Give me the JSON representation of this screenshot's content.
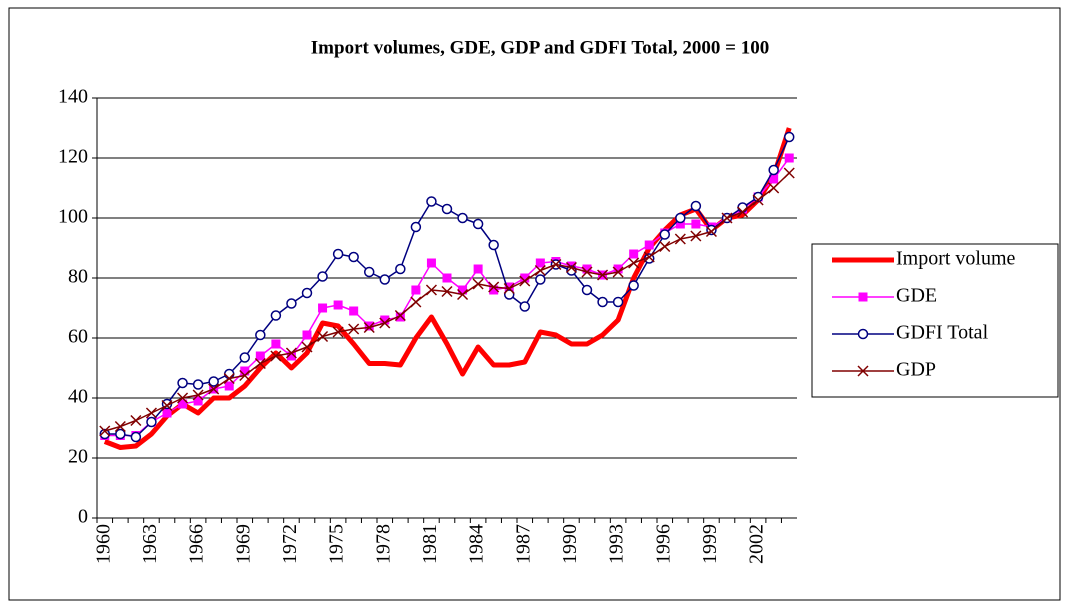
{
  "chart_data": {
    "type": "line",
    "title": "Import volumes, GDE, GDP and GDFI Total, 2000 = 100",
    "categories": [
      "1960",
      null,
      null,
      "1963",
      null,
      null,
      "1966",
      null,
      null,
      "1969",
      null,
      null,
      "1972",
      null,
      null,
      "1975",
      null,
      null,
      "1978",
      null,
      null,
      "1981",
      null,
      null,
      "1984",
      null,
      null,
      "1987",
      null,
      null,
      "1990",
      null,
      null,
      "1993",
      null,
      null,
      "1996",
      null,
      null,
      "1999",
      null,
      null,
      "2002",
      null,
      null
    ],
    "ylim": [
      0,
      140
    ],
    "yticks": [
      0,
      20,
      40,
      60,
      80,
      100,
      120,
      140
    ],
    "grid": true,
    "legend": "right",
    "series": [
      {
        "name": "Import volume",
        "color": "#ff0000",
        "marker": "none",
        "line_width": 5,
        "values": [
          25.5,
          23.5,
          24,
          28,
          34,
          38,
          35,
          40,
          40,
          44,
          50,
          55,
          50,
          55,
          65,
          64,
          58,
          51.5,
          51.5,
          51,
          60,
          67,
          58,
          48,
          57,
          51,
          51,
          52,
          62,
          61,
          58,
          58,
          61,
          66,
          80,
          90,
          96,
          101,
          103,
          96,
          100,
          101,
          106,
          114,
          130
        ]
      },
      {
        "name": "GDE",
        "color": "#ff00ff",
        "marker": "square",
        "line_width": 1.5,
        "values": [
          27.5,
          27.5,
          27.5,
          32,
          35,
          38,
          39,
          43,
          44,
          49,
          54,
          58,
          54,
          61,
          70,
          71,
          69,
          64,
          66,
          67,
          76,
          85,
          80,
          76,
          83,
          76,
          77,
          80,
          85,
          85.5,
          84,
          83,
          81,
          83,
          88,
          91,
          95,
          98,
          98,
          97,
          100,
          103,
          107,
          113,
          120
        ]
      },
      {
        "name": "GDFI Total",
        "color": "#000080",
        "marker": "circle",
        "line_width": 1.5,
        "values": [
          28,
          28,
          27,
          32,
          38,
          45,
          44.5,
          45.5,
          48,
          53.5,
          61,
          67.5,
          71.5,
          75,
          80.5,
          88,
          87,
          82,
          79.5,
          83,
          97,
          105.5,
          103,
          100,
          98,
          91,
          74.5,
          70.5,
          79.5,
          84.5,
          82.5,
          76,
          72,
          72,
          77.5,
          86.5,
          94.5,
          100,
          104,
          96,
          100,
          103.5,
          107,
          116,
          127
        ]
      },
      {
        "name": "GDP",
        "color": "#800000",
        "marker": "x",
        "line_width": 1.5,
        "values": [
          29,
          30.5,
          32.5,
          35,
          37.5,
          40,
          41,
          43,
          46.5,
          47.5,
          51.5,
          54,
          55,
          57,
          60.5,
          62,
          63,
          63.5,
          65,
          67.5,
          72,
          76,
          75.5,
          74.5,
          78,
          77,
          76.5,
          79,
          82.5,
          84.5,
          83.5,
          82,
          81,
          82,
          85,
          87,
          90.5,
          93,
          94,
          95.5,
          100,
          102,
          106,
          110,
          115
        ]
      }
    ]
  }
}
